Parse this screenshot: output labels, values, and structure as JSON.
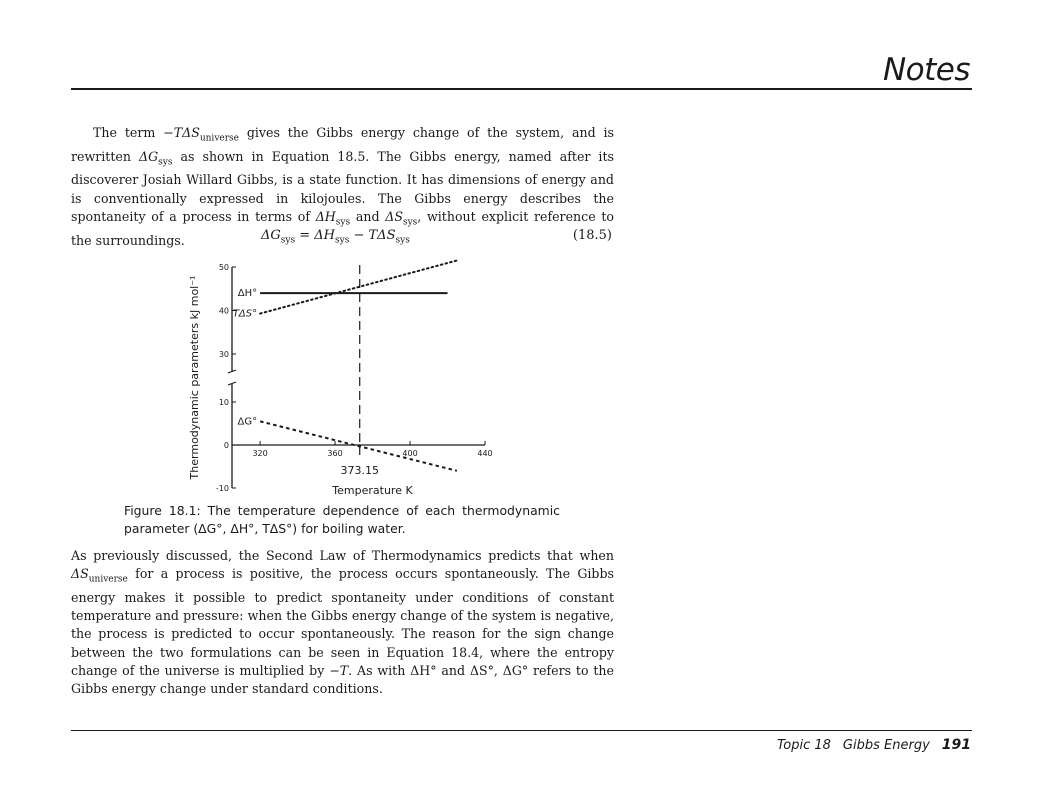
{
  "header": {
    "title": "Notes"
  },
  "paragraphs": {
    "p1": {
      "t1": "The term ",
      "m1": "−TΔS",
      "s1": "universe",
      "t2": " gives the Gibbs energy change of the system, and is rewritten ",
      "m2": "ΔG",
      "s2": "sys",
      "t3": " as shown in Equation 18.5. The Gibbs energy, named after its discoverer Josiah Willard Gibbs, is a state function. It has dimensions of energy and is conventionally expressed in kilojoules. The Gibbs energy describes the spontaneity of a process in terms of ",
      "m3": "ΔH",
      "s3": "sys",
      "t4": " and ",
      "m4": "ΔS",
      "s4": "sys",
      "t5": ", without explicit reference to the surroundings."
    },
    "p2": {
      "t1": "As previously discussed, the Second Law of Thermodynamics predicts that when ",
      "m1": "ΔS",
      "s1": "universe",
      "t2": " for a process is positive, the process occurs spontaneously. The Gibbs energy makes it possible to predict spontaneity under conditions of constant temperature and pressure: when the Gibbs energy change of the system is negative, the process is predicted to occur spontaneously. The reason for the sign change between the two formulations can be seen in Equation 18.4, where the entropy change of the universe is multiplied by ",
      "m2": "−T",
      "t3": ". As with ΔH° and ΔS°, ΔG° refers to the Gibbs energy change under standard conditions."
    }
  },
  "equation": {
    "g": "ΔG",
    "g_sub": "sys",
    "eq": " = ",
    "h": "ΔH",
    "h_sub": "sys",
    "minus": " − ",
    "ts": "TΔS",
    "ts_sub": "sys",
    "number": "(18.5)"
  },
  "figure": {
    "caption": "Figure 18.1: The temperature dependence of each thermodynamic parameter (ΔG°, ΔH°, TΔS°) for boiling water.",
    "boiling_point_label": "373.15"
  },
  "chart_data": {
    "type": "line",
    "title": "",
    "xlabel": "Temperature K",
    "ylabel": "Thermodynamic parameters kJ mol⁻¹",
    "xlim": [
      305,
      440
    ],
    "ylim": [
      -10,
      50
    ],
    "x_ticks": [
      320,
      360,
      400,
      440
    ],
    "y_ticks": [
      -10,
      0,
      10,
      30,
      40,
      50
    ],
    "axis_break_between": [
      10,
      30
    ],
    "grid": false,
    "vertical_marker": {
      "x": 373.15,
      "label": "373.15"
    },
    "series": [
      {
        "name": "ΔH°",
        "style": "solid",
        "x": [
          320,
          420
        ],
        "y": [
          44,
          44
        ]
      },
      {
        "name": "TΔS°",
        "style": "dotted",
        "x": [
          320,
          425
        ],
        "y": [
          39.3,
          51.5
        ]
      },
      {
        "name": "ΔG°",
        "style": "dashed",
        "x": [
          320,
          425
        ],
        "y": [
          5.5,
          -6
        ]
      }
    ]
  },
  "footer": {
    "topic": "Topic 18",
    "section": "Gibbs Energy",
    "page": "191"
  }
}
